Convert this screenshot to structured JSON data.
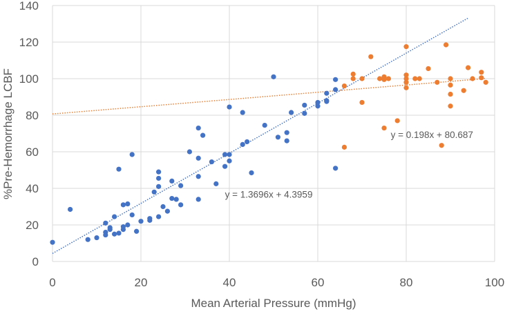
{
  "chart_data": {
    "type": "scatter",
    "title": "",
    "xlabel": "Mean Arterial Pressure (mmHg)",
    "ylabel": "%Pre-Hemorrhage LCBF",
    "xlim": [
      0,
      100
    ],
    "ylim": [
      0,
      140
    ],
    "xticks": [
      0,
      20,
      40,
      60,
      80,
      100
    ],
    "yticks": [
      0,
      20,
      40,
      60,
      80,
      100,
      120,
      140
    ],
    "grid": true,
    "legend": "none",
    "series": [
      {
        "color": "#4472C4",
        "points": [
          [
            0,
            10.5
          ],
          [
            4,
            28.5
          ],
          [
            8,
            12
          ],
          [
            10,
            13
          ],
          [
            12,
            21
          ],
          [
            12,
            16
          ],
          [
            12,
            14.5
          ],
          [
            13,
            18.5
          ],
          [
            13,
            17.5
          ],
          [
            14,
            24.5
          ],
          [
            14,
            15
          ],
          [
            15,
            15.5
          ],
          [
            15,
            50.5
          ],
          [
            16,
            31
          ],
          [
            16,
            19
          ],
          [
            16,
            17.5
          ],
          [
            17,
            31.5
          ],
          [
            17,
            20
          ],
          [
            18,
            58.5
          ],
          [
            18,
            25.5
          ],
          [
            19,
            16.5
          ],
          [
            20,
            22
          ],
          [
            22,
            23.5
          ],
          [
            22,
            22.5
          ],
          [
            23,
            38
          ],
          [
            24,
            49
          ],
          [
            24,
            45.5
          ],
          [
            24,
            41
          ],
          [
            24,
            24.5
          ],
          [
            25,
            30
          ],
          [
            26,
            27.5
          ],
          [
            27,
            44
          ],
          [
            27,
            34.5
          ],
          [
            28,
            34
          ],
          [
            29,
            41.5
          ],
          [
            29,
            31
          ],
          [
            31,
            60
          ],
          [
            33,
            73
          ],
          [
            33,
            56.5
          ],
          [
            33,
            46.5
          ],
          [
            33,
            34
          ],
          [
            34,
            69
          ],
          [
            36,
            54.5
          ],
          [
            37,
            42.5
          ],
          [
            39,
            58.5
          ],
          [
            39,
            52
          ],
          [
            40,
            58.5
          ],
          [
            40,
            55
          ],
          [
            40,
            84.5
          ],
          [
            43,
            81.5
          ],
          [
            43,
            64
          ],
          [
            44,
            65.5
          ],
          [
            45,
            48.5
          ],
          [
            48,
            74.5
          ],
          [
            50,
            101
          ],
          [
            51,
            68
          ],
          [
            53,
            70.5
          ],
          [
            53,
            66
          ],
          [
            54,
            81.5
          ],
          [
            57,
            85.5
          ],
          [
            57,
            81
          ],
          [
            60,
            87
          ],
          [
            60,
            85
          ],
          [
            62,
            92
          ],
          [
            62,
            88
          ],
          [
            62,
            87.5
          ],
          [
            64,
            99.5
          ],
          [
            64,
            94
          ],
          [
            64,
            51
          ]
        ],
        "trendline": {
          "slope": 1.3696,
          "intercept": 4.3959,
          "x_range": [
            0,
            94
          ],
          "label": "y = 1.3696x + 4.3959",
          "label_at": [
            39,
            35
          ]
        }
      },
      {
        "color": "#ED7D31",
        "points": [
          [
            66,
            96
          ],
          [
            66,
            62.5
          ],
          [
            68,
            102.5
          ],
          [
            68,
            100
          ],
          [
            70,
            100
          ],
          [
            70,
            87
          ],
          [
            72,
            112
          ],
          [
            74,
            100
          ],
          [
            75,
            101
          ],
          [
            75,
            99.5
          ],
          [
            75,
            73
          ],
          [
            76,
            100
          ],
          [
            78,
            77
          ],
          [
            80,
            117.5
          ],
          [
            80,
            102
          ],
          [
            80,
            100
          ],
          [
            80,
            98
          ],
          [
            80,
            95
          ],
          [
            82,
            100
          ],
          [
            83,
            100
          ],
          [
            85,
            105.5
          ],
          [
            87,
            98
          ],
          [
            88,
            63.5
          ],
          [
            89,
            118.5
          ],
          [
            90,
            100
          ],
          [
            90,
            96.5
          ],
          [
            90,
            91.5
          ],
          [
            90,
            85
          ],
          [
            93,
            93.5
          ],
          [
            94,
            106
          ],
          [
            95,
            100
          ],
          [
            97,
            103.5
          ],
          [
            97,
            100.5
          ],
          [
            98,
            98
          ]
        ],
        "trendline": {
          "slope": 0.198,
          "intercept": 80.687,
          "x_range": [
            0,
            98
          ],
          "label": "y = 0.198x + 80.687",
          "label_at": [
            76.5,
            67.5
          ]
        }
      }
    ]
  }
}
